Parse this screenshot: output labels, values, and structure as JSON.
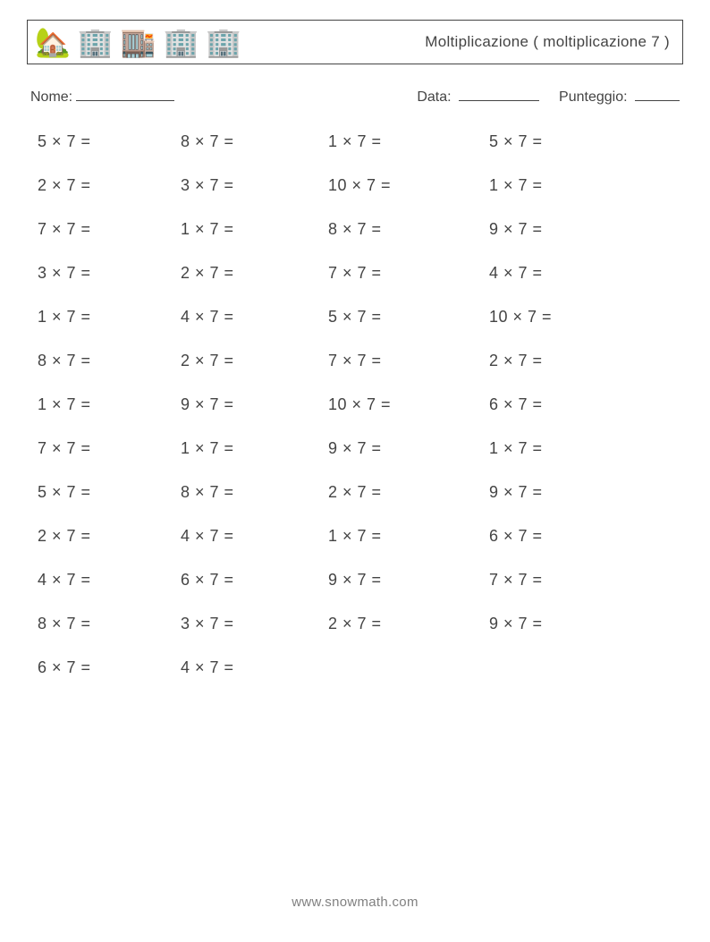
{
  "header": {
    "title": "Moltiplicazione ( moltiplicazione 7 )",
    "icons": [
      "🏡",
      "🏢",
      "🏬",
      "🏢",
      "🏢"
    ]
  },
  "info": {
    "name_label": "Nome:",
    "date_label": "Data:",
    "score_label": "Punteggio:"
  },
  "problems": [
    [
      "5 × 7 =",
      "8 × 7 =",
      "1 × 7 =",
      "5 × 7 ="
    ],
    [
      "2 × 7 =",
      "3 × 7 =",
      "10 × 7 =",
      "1 × 7 ="
    ],
    [
      "7 × 7 =",
      "1 × 7 =",
      "8 × 7 =",
      "9 × 7 ="
    ],
    [
      "3 × 7 =",
      "2 × 7 =",
      "7 × 7 =",
      "4 × 7 ="
    ],
    [
      "1 × 7 =",
      "4 × 7 =",
      "5 × 7 =",
      "10 × 7 ="
    ],
    [
      "8 × 7 =",
      "2 × 7 =",
      "7 × 7 =",
      "2 × 7 ="
    ],
    [
      "1 × 7 =",
      "9 × 7 =",
      "10 × 7 =",
      "6 × 7 ="
    ],
    [
      "7 × 7 =",
      "1 × 7 =",
      "9 × 7 =",
      "1 × 7 ="
    ],
    [
      "5 × 7 =",
      "8 × 7 =",
      "2 × 7 =",
      "9 × 7 ="
    ],
    [
      "2 × 7 =",
      "4 × 7 =",
      "1 × 7 =",
      "6 × 7 ="
    ],
    [
      "4 × 7 =",
      "6 × 7 =",
      "9 × 7 =",
      "7 × 7 ="
    ],
    [
      "8 × 7 =",
      "3 × 7 =",
      "2 × 7 =",
      "9 × 7 ="
    ],
    [
      "6 × 7 =",
      "4 × 7 =",
      "",
      ""
    ]
  ],
  "footer": "www.snowmath.com"
}
